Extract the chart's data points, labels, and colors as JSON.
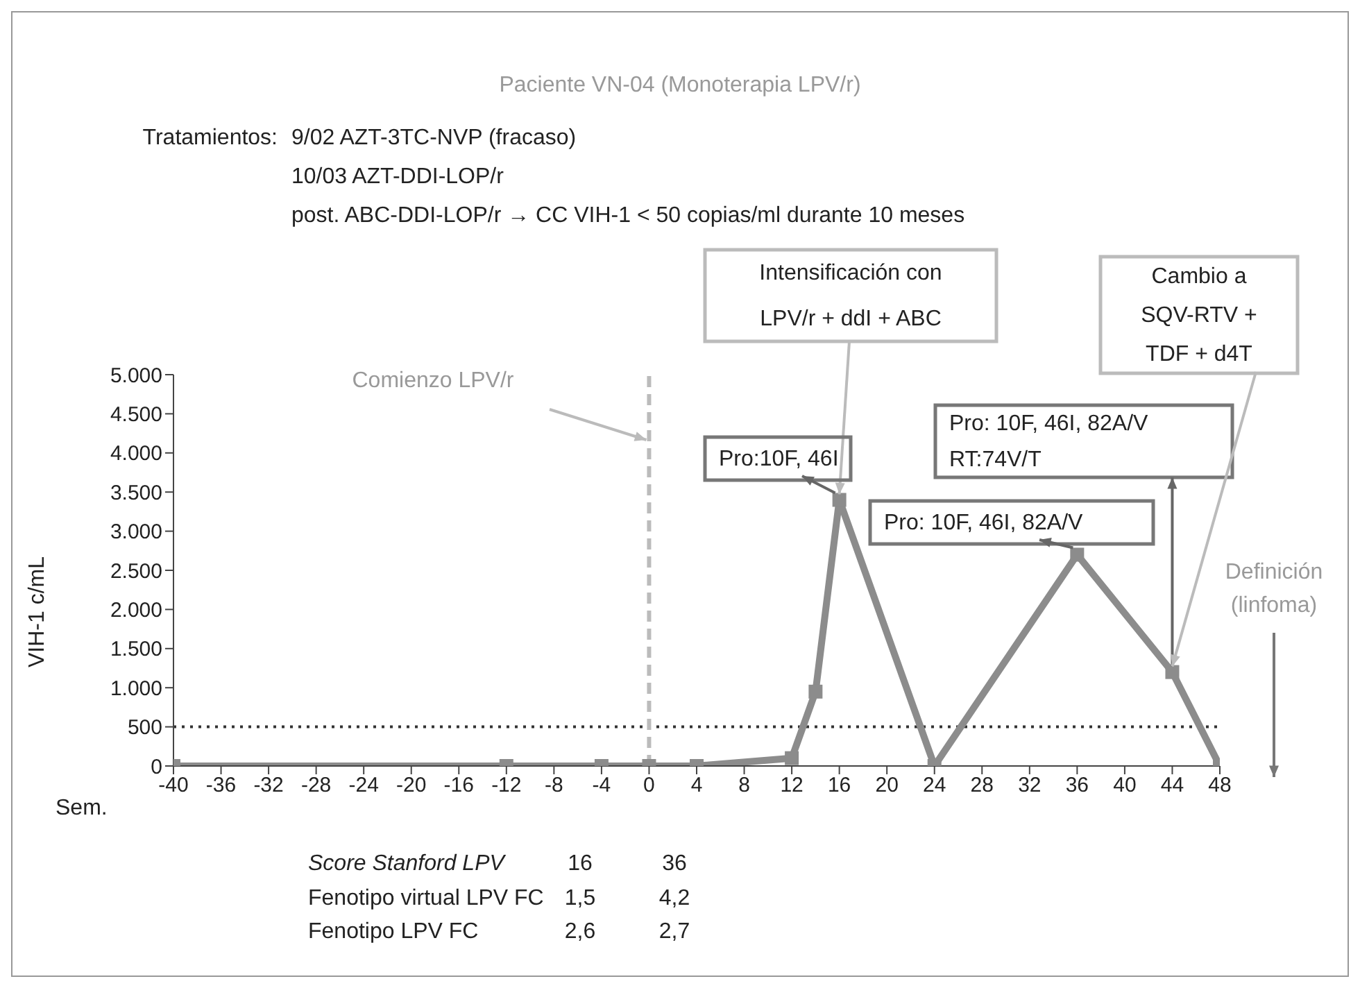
{
  "chart_data": {
    "type": "line",
    "title": "Paciente VN-04 (Monoterapia LPV/r)",
    "xlabel": "Sem.",
    "ylabel": "VIH-1 c/mL",
    "x": [
      -40,
      -12,
      -4,
      0,
      4,
      12,
      14,
      16,
      24,
      36,
      44,
      48
    ],
    "series": [
      {
        "color": "#8c8c8c",
        "values": [
          0,
          0,
          0,
          0,
          0,
          100,
          950,
          3400,
          0,
          2700,
          1200,
          0
        ]
      }
    ],
    "xlim": [
      -40,
      48
    ],
    "xticks": [
      -40,
      -36,
      -32,
      -28,
      -24,
      -20,
      -16,
      -12,
      -8,
      -4,
      0,
      4,
      8,
      12,
      16,
      20,
      24,
      28,
      32,
      36,
      40,
      44,
      48
    ],
    "ylim": [
      0,
      5000
    ],
    "yticks": [
      0,
      500,
      {
        "value": 1000,
        "label": "1.000"
      },
      {
        "value": 1500,
        "label": "1.500"
      },
      {
        "value": 2000,
        "label": "2.000"
      },
      {
        "value": 2500,
        "label": "2.500"
      },
      {
        "value": 3000,
        "label": "3.000"
      },
      {
        "value": 3500,
        "label": "3.500"
      },
      {
        "value": 4000,
        "label": "4.000"
      },
      {
        "value": 4500,
        "label": "4.500"
      },
      {
        "value": 5000,
        "label": "5.000"
      }
    ],
    "marker": "square",
    "ref_lines": [
      {
        "axis": "y",
        "value": 500,
        "color": "#333333",
        "line_style": "dotted"
      },
      {
        "axis": "x",
        "value": 0,
        "label": "Comienzo LPV/r",
        "color": "#bbbbbb",
        "line_style": "dashed"
      }
    ],
    "annotations": [
      "Tratamientos:",
      "9/02 AZT-3TC-NVP (fracaso)",
      "10/03 AZT-DDI-LOP/r",
      "post. ABC-DDI-LOP/r → CC VIH-1 < 50 copias/ml durante 10 meses",
      {
        "text": "Intensificación con LPV/r + ddI + ABC",
        "x": 16,
        "y": 3400
      },
      {
        "text": "Pro:10F, 46I",
        "x": 16,
        "y": 3400
      },
      {
        "text": "Pro: 10F, 46I, 82A/V",
        "x": 36,
        "y": 2700
      },
      {
        "text": "Pro: 10F, 46I, 82A/V RT:74V/T",
        "x": 44,
        "y": 1200
      },
      {
        "text": "Cambio a SQV-RTV + TDF + d4T",
        "x": 44,
        "y": 1200
      },
      "Definición (linfoma)",
      "Score Stanford LPV",
      "16",
      "36",
      "Fenotipo virtual LPV FC",
      "1,5",
      "4,2",
      "Fenotipo LPV FC",
      "2,6",
      "2,7"
    ]
  }
}
